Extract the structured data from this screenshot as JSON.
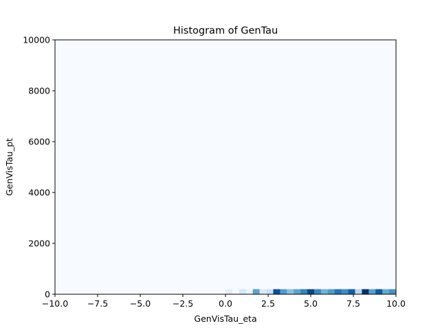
{
  "chart_data": {
    "type": "heatmap",
    "title": "Histogram of GenTau",
    "xlabel": "GenVisTau_eta",
    "ylabel": "GenVisTau_pt",
    "xlim": [
      -10,
      10
    ],
    "ylim": [
      0,
      10000
    ],
    "xticks": [
      -10,
      -7.5,
      -5,
      -2.5,
      0,
      2.5,
      5,
      7.5,
      10
    ],
    "xtick_labels": [
      "−10.0",
      "−7.5",
      "−5.0",
      "−2.5",
      "0.0",
      "2.5",
      "5.0",
      "7.5",
      "10.0"
    ],
    "yticks": [
      0,
      2000,
      4000,
      6000,
      8000,
      10000
    ],
    "ytick_labels": [
      "0",
      "2000",
      "4000",
      "6000",
      "8000",
      "10000"
    ],
    "grid": false,
    "colormap": "Blues",
    "background_color": "#f7fbff",
    "bin_width_x": 0.4,
    "bin_height_y": 200,
    "filled_bins": [
      {
        "x0": 0.0,
        "y0": 0,
        "intensity": 0.1
      },
      {
        "x0": 0.8,
        "y0": 0,
        "intensity": 0.16
      },
      {
        "x0": 1.2,
        "y0": 0,
        "intensity": 0.06
      },
      {
        "x0": 1.6,
        "y0": 0,
        "intensity": 0.55
      },
      {
        "x0": 2.0,
        "y0": 0,
        "intensity": 0.14
      },
      {
        "x0": 2.4,
        "y0": 0,
        "intensity": 0.22
      },
      {
        "x0": 2.8,
        "y0": 0,
        "intensity": 0.88
      },
      {
        "x0": 3.2,
        "y0": 0,
        "intensity": 0.58
      },
      {
        "x0": 3.6,
        "y0": 0,
        "intensity": 0.42
      },
      {
        "x0": 4.0,
        "y0": 0,
        "intensity": 0.55
      },
      {
        "x0": 4.4,
        "y0": 0,
        "intensity": 0.68
      },
      {
        "x0": 4.8,
        "y0": 0,
        "intensity": 0.92
      },
      {
        "x0": 5.2,
        "y0": 0,
        "intensity": 0.66
      },
      {
        "x0": 5.6,
        "y0": 0,
        "intensity": 0.48
      },
      {
        "x0": 6.0,
        "y0": 0,
        "intensity": 0.58
      },
      {
        "x0": 6.4,
        "y0": 0,
        "intensity": 0.74
      },
      {
        "x0": 6.8,
        "y0": 0,
        "intensity": 0.64
      },
      {
        "x0": 7.2,
        "y0": 0,
        "intensity": 0.82
      },
      {
        "x0": 7.6,
        "y0": 0,
        "intensity": 0.28
      },
      {
        "x0": 8.0,
        "y0": 0,
        "intensity": 1.0
      },
      {
        "x0": 8.4,
        "y0": 0,
        "intensity": 0.56
      },
      {
        "x0": 8.8,
        "y0": 0,
        "intensity": 0.84
      },
      {
        "x0": 9.2,
        "y0": 0,
        "intensity": 0.52
      },
      {
        "x0": 9.6,
        "y0": 0,
        "intensity": 0.62
      }
    ]
  }
}
